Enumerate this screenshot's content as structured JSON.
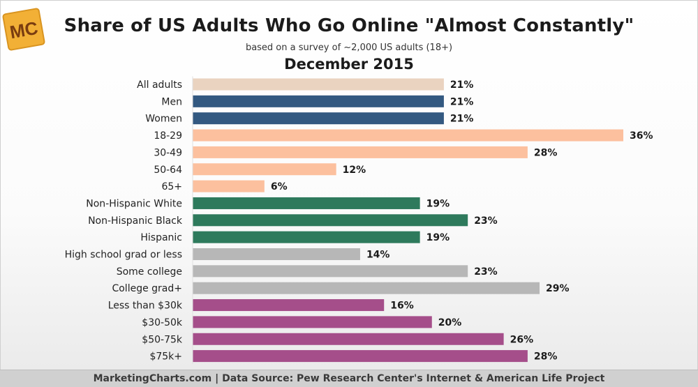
{
  "logo": {
    "text": "MC",
    "color": "#f2b036"
  },
  "title": "Share of US Adults Who Go Online \"Almost Constantly\"",
  "subtitle": "based on a survey of ~2,000 US adults (18+)",
  "date": "December 2015",
  "footer": "MarketingCharts.com | Data Source: Pew Research Center's Internet & American Life Project",
  "chart_data": {
    "type": "bar",
    "orientation": "horizontal",
    "title": "Share of US Adults Who Go Online \"Almost Constantly\"",
    "subtitle": "based on a survey of ~2,000 US adults (18+)",
    "xlim": [
      0,
      36
    ],
    "grid": false,
    "legend": "none",
    "categories": [
      "All adults",
      "Men",
      "Women",
      "18-29",
      "30-49",
      "50-64",
      "65+",
      "Non-Hispanic White",
      "Non-Hispanic Black",
      "Hispanic",
      "High school grad or less",
      "Some college",
      "College grad+",
      "Less than $30k",
      "$30-50k",
      "$50-75k",
      "$75k+"
    ],
    "values": [
      21,
      21,
      21,
      36,
      28,
      12,
      6,
      19,
      23,
      19,
      14,
      23,
      29,
      16,
      20,
      26,
      28
    ],
    "value_labels": [
      "21%",
      "21%",
      "21%",
      "36%",
      "28%",
      "12%",
      "6%",
      "19%",
      "23%",
      "19%",
      "14%",
      "23%",
      "29%",
      "16%",
      "20%",
      "26%",
      "28%"
    ],
    "bar_colors": [
      "#ead3c0",
      "#335981",
      "#335981",
      "#fcc09e",
      "#fcc09e",
      "#fcc09e",
      "#fcc09e",
      "#2e7a5c",
      "#2e7a5c",
      "#2e7a5c",
      "#b7b7b7",
      "#b7b7b7",
      "#b7b7b7",
      "#a54e8a",
      "#a54e8a",
      "#a54e8a",
      "#a54e8a"
    ]
  }
}
